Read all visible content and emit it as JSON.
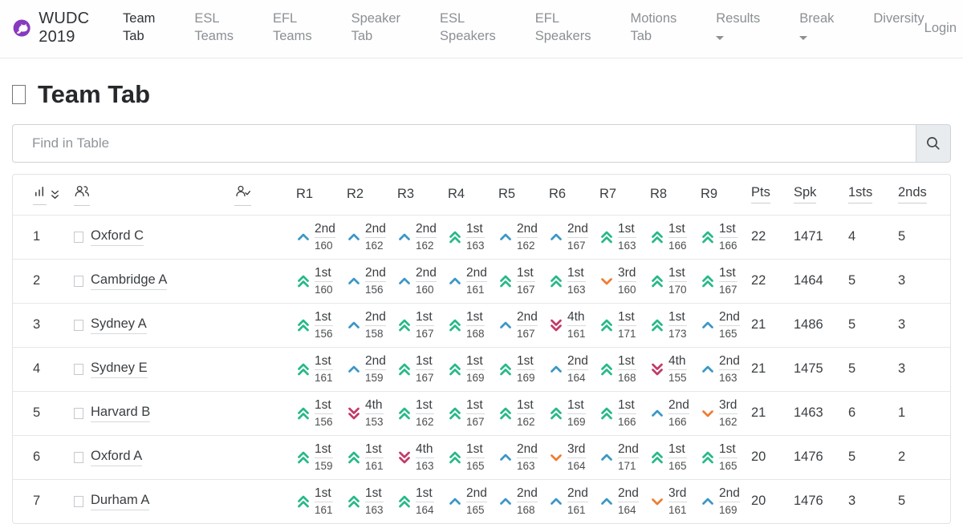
{
  "navbar": {
    "brand": "WUDC 2019",
    "items": [
      {
        "label": "Team Tab",
        "active": true,
        "dropdown": false
      },
      {
        "label": "ESL Teams",
        "active": false,
        "dropdown": false
      },
      {
        "label": "EFL Teams",
        "active": false,
        "dropdown": false
      },
      {
        "label": "Speaker Tab",
        "active": false,
        "dropdown": false
      },
      {
        "label": "ESL Speakers",
        "active": false,
        "dropdown": false
      },
      {
        "label": "EFL Speakers",
        "active": false,
        "dropdown": false
      },
      {
        "label": "Motions Tab",
        "active": false,
        "dropdown": false
      },
      {
        "label": "Results",
        "active": false,
        "dropdown": true
      },
      {
        "label": "Break",
        "active": false,
        "dropdown": true
      },
      {
        "label": "Diversity",
        "active": false,
        "dropdown": false
      }
    ],
    "login_label": "Login"
  },
  "page": {
    "title": "Team Tab"
  },
  "search": {
    "placeholder": "Find in Table"
  },
  "icons": {
    "rank_sort": "bar-chart-with-sort-chevrons",
    "team": "people-icon",
    "checked_in": "person-check-icon",
    "search": "magnifier-icon",
    "logo": "cat-logo"
  },
  "colors": {
    "1st": "#27b987",
    "2nd": "#3b97c6",
    "3rd": "#ee7d33",
    "4th": "#c23a68",
    "accent_logo": "#8839c0"
  },
  "table": {
    "round_headers": [
      "R1",
      "R2",
      "R3",
      "R4",
      "R5",
      "R6",
      "R7",
      "R8",
      "R9"
    ],
    "stat_headers": [
      "Pts",
      "Spk",
      "1sts",
      "2nds"
    ],
    "rows": [
      {
        "rank": "1",
        "team": "Oxford C",
        "pts": "22",
        "spk": "1471",
        "firsts": "4",
        "seconds": "5",
        "rounds": [
          {
            "place": "2nd",
            "score": "160"
          },
          {
            "place": "2nd",
            "score": "162"
          },
          {
            "place": "2nd",
            "score": "162"
          },
          {
            "place": "1st",
            "score": "163"
          },
          {
            "place": "2nd",
            "score": "162"
          },
          {
            "place": "2nd",
            "score": "167"
          },
          {
            "place": "1st",
            "score": "163"
          },
          {
            "place": "1st",
            "score": "166"
          },
          {
            "place": "1st",
            "score": "166"
          }
        ]
      },
      {
        "rank": "2",
        "team": "Cambridge A",
        "pts": "22",
        "spk": "1464",
        "firsts": "5",
        "seconds": "3",
        "rounds": [
          {
            "place": "1st",
            "score": "160"
          },
          {
            "place": "2nd",
            "score": "156"
          },
          {
            "place": "2nd",
            "score": "160"
          },
          {
            "place": "2nd",
            "score": "161"
          },
          {
            "place": "1st",
            "score": "167"
          },
          {
            "place": "1st",
            "score": "163"
          },
          {
            "place": "3rd",
            "score": "160"
          },
          {
            "place": "1st",
            "score": "170"
          },
          {
            "place": "1st",
            "score": "167"
          }
        ]
      },
      {
        "rank": "3",
        "team": "Sydney A",
        "pts": "21",
        "spk": "1486",
        "firsts": "5",
        "seconds": "3",
        "rounds": [
          {
            "place": "1st",
            "score": "156"
          },
          {
            "place": "2nd",
            "score": "158"
          },
          {
            "place": "1st",
            "score": "167"
          },
          {
            "place": "1st",
            "score": "168"
          },
          {
            "place": "2nd",
            "score": "167"
          },
          {
            "place": "4th",
            "score": "161"
          },
          {
            "place": "1st",
            "score": "171"
          },
          {
            "place": "1st",
            "score": "173"
          },
          {
            "place": "2nd",
            "score": "165"
          }
        ]
      },
      {
        "rank": "4",
        "team": "Sydney E",
        "pts": "21",
        "spk": "1475",
        "firsts": "5",
        "seconds": "3",
        "rounds": [
          {
            "place": "1st",
            "score": "161"
          },
          {
            "place": "2nd",
            "score": "159"
          },
          {
            "place": "1st",
            "score": "167"
          },
          {
            "place": "1st",
            "score": "169"
          },
          {
            "place": "1st",
            "score": "169"
          },
          {
            "place": "2nd",
            "score": "164"
          },
          {
            "place": "1st",
            "score": "168"
          },
          {
            "place": "4th",
            "score": "155"
          },
          {
            "place": "2nd",
            "score": "163"
          }
        ]
      },
      {
        "rank": "5",
        "team": "Harvard B",
        "pts": "21",
        "spk": "1463",
        "firsts": "6",
        "seconds": "1",
        "rounds": [
          {
            "place": "1st",
            "score": "156"
          },
          {
            "place": "4th",
            "score": "153"
          },
          {
            "place": "1st",
            "score": "162"
          },
          {
            "place": "1st",
            "score": "167"
          },
          {
            "place": "1st",
            "score": "162"
          },
          {
            "place": "1st",
            "score": "169"
          },
          {
            "place": "1st",
            "score": "166"
          },
          {
            "place": "2nd",
            "score": "166"
          },
          {
            "place": "3rd",
            "score": "162"
          }
        ]
      },
      {
        "rank": "6",
        "team": "Oxford A",
        "pts": "20",
        "spk": "1476",
        "firsts": "5",
        "seconds": "2",
        "rounds": [
          {
            "place": "1st",
            "score": "159"
          },
          {
            "place": "1st",
            "score": "161"
          },
          {
            "place": "4th",
            "score": "163"
          },
          {
            "place": "1st",
            "score": "165"
          },
          {
            "place": "2nd",
            "score": "163"
          },
          {
            "place": "3rd",
            "score": "164"
          },
          {
            "place": "2nd",
            "score": "171"
          },
          {
            "place": "1st",
            "score": "165"
          },
          {
            "place": "1st",
            "score": "165"
          }
        ]
      },
      {
        "rank": "7",
        "team": "Durham A",
        "pts": "20",
        "spk": "1476",
        "firsts": "3",
        "seconds": "5",
        "rounds": [
          {
            "place": "1st",
            "score": "161"
          },
          {
            "place": "1st",
            "score": "163"
          },
          {
            "place": "1st",
            "score": "164"
          },
          {
            "place": "2nd",
            "score": "165"
          },
          {
            "place": "2nd",
            "score": "168"
          },
          {
            "place": "2nd",
            "score": "161"
          },
          {
            "place": "2nd",
            "score": "164"
          },
          {
            "place": "3rd",
            "score": "161"
          },
          {
            "place": "2nd",
            "score": "169"
          }
        ]
      }
    ]
  }
}
